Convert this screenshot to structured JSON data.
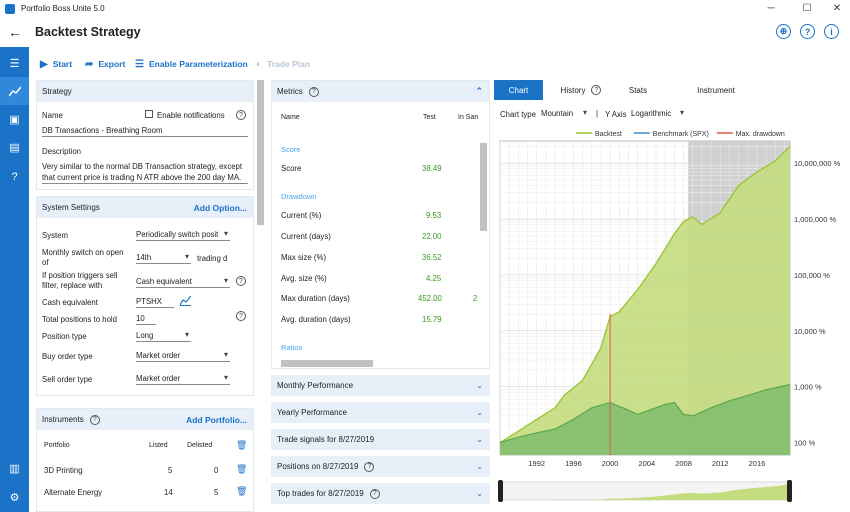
{
  "window": {
    "title": "Portfolio Boss Unite 5.0"
  },
  "header": {
    "title": "Backtest Strategy"
  },
  "toolbar": {
    "start": "Start",
    "export": "Export",
    "enable_param": "Enable Parameterization",
    "trade_plan": "Trade Plan"
  },
  "strategy": {
    "panel_title": "Strategy",
    "name_label": "Name",
    "notify_label": "Enable notifications",
    "name_value": "DB Transactions - Breathing Room",
    "desc_label": "Description",
    "desc_line1": "Very similar to the normal DB Transaction strategy, except",
    "desc_line2": "that current price is trading N ATR above the 200 day MA."
  },
  "system": {
    "panel_title": "System Settings",
    "add_option": "Add Option...",
    "system_label": "System",
    "system_value": "Periodically switch posit",
    "monthly_label_1": "Monthly switch on open",
    "monthly_label_2": "of",
    "monthly_value": "14th",
    "trading_suffix": "trading d",
    "sell_label_1": "If position triggers sell",
    "sell_label_2": "filter, replace with",
    "sell_value": "Cash equivalent",
    "cash_label": "Cash equivalent",
    "cash_value": "PTSHX",
    "total_label": "Total positions to hold",
    "total_value": "10",
    "ptype_label": "Position type",
    "ptype_value": "Long",
    "buy_label": "Buy order type",
    "buy_value": "Market order",
    "sell_order_label": "Sell order type",
    "sell_order_value": "Market order"
  },
  "instruments": {
    "panel_title": "Instruments",
    "add_portfolio": "Add Portfolio...",
    "col_portfolio": "Portfolio",
    "col_listed": "Listed",
    "col_delisted": "Delisted",
    "rows": [
      {
        "name": "3D Printing",
        "listed": "5",
        "delisted": "0"
      },
      {
        "name": "Alternate Energy",
        "listed": "14",
        "delisted": "5"
      }
    ]
  },
  "metrics": {
    "panel_title": "Metrics",
    "col_name": "Name",
    "col_test": "Test",
    "col_insample": "In San",
    "score_section": "Score",
    "score_label": "Score",
    "score_value": "38.49",
    "drawdown_section": "Drawdown",
    "rows": [
      {
        "label": "Current (%)",
        "value": "9.53",
        "extra": ""
      },
      {
        "label": "Current (days)",
        "value": "22.00",
        "extra": ""
      },
      {
        "label": "Max size (%)",
        "value": "36.52",
        "extra": ""
      },
      {
        "label": "Avg. size (%)",
        "value": "4.25",
        "extra": ""
      },
      {
        "label": "Max duration (days)",
        "value": "452.00",
        "extra": "2"
      },
      {
        "label": "Avg. duration (days)",
        "value": "15.79",
        "extra": ""
      }
    ],
    "ratios_section": "Ratios"
  },
  "accordions": [
    {
      "label": "Monthly Performance"
    },
    {
      "label": "Yearly Performance"
    },
    {
      "label": "Trade signals for 8/27/2019"
    },
    {
      "label": "Positions on 8/27/2019"
    },
    {
      "label": "Top trades for 8/27/2019"
    }
  ],
  "tabs": {
    "chart": "Chart",
    "history": "History",
    "stats": "Stats",
    "instrument": "Instrument"
  },
  "chart_controls": {
    "type_label": "Chart type",
    "type_value": "Mountain",
    "yaxis_label": "Y Axis",
    "yaxis_value": "Logarithmic"
  },
  "chart_data": {
    "type": "area",
    "ylabel": "",
    "xlabel": "",
    "yscale": "log",
    "ylim": [
      60,
      25000000
    ],
    "xlim": [
      1988,
      2019.6
    ],
    "x_ticks": [
      "1992",
      "1996",
      "2000",
      "2004",
      "2008",
      "2012",
      "2016"
    ],
    "x_tick_values": [
      1992,
      1996,
      2000,
      2004,
      2008,
      2012,
      2016
    ],
    "y_ticks": [
      "100 %",
      "1,000 %",
      "10,000 %",
      "100,000 %",
      "1,000,000 %",
      "10,000,000 %"
    ],
    "y_tick_values": [
      100,
      1000,
      10000,
      100000,
      1000000,
      10000000
    ],
    "legend": [
      "Backtest",
      "Benchmark (SPX)",
      "Max. drawdown"
    ],
    "legend_position": "top",
    "out_of_sample_start": 2008.5,
    "max_drawdown_year": 2000.0,
    "colors": {
      "backtest": "#9cc63a",
      "benchmark": "#3b8fd6",
      "drawdown": "#e05a4a",
      "oos": "#c8c8c8"
    },
    "series": [
      {
        "name": "Backtest",
        "x": [
          1988,
          1990,
          1992,
          1994,
          1995,
          1997,
          1999,
          2000,
          2001,
          2003,
          2005,
          2007,
          2008,
          2009,
          2010,
          2012,
          2014,
          2016,
          2018,
          2019.6
        ],
        "values": [
          100,
          160,
          260,
          420,
          700,
          1300,
          5000,
          18000,
          22000,
          55000,
          160000,
          550000,
          900000,
          1100000,
          800000,
          1300000,
          4000000,
          7000000,
          11000000,
          20000000
        ]
      },
      {
        "name": "Benchmark (SPX)",
        "x": [
          1988,
          1990,
          1992,
          1994,
          1996,
          1998,
          2000,
          2002,
          2003,
          2006,
          2007,
          2008,
          2009,
          2011,
          2013,
          2015,
          2017,
          2019.6
        ],
        "values": [
          100,
          125,
          150,
          175,
          260,
          420,
          520,
          380,
          320,
          480,
          520,
          320,
          300,
          420,
          560,
          700,
          880,
          1100
        ]
      }
    ]
  }
}
